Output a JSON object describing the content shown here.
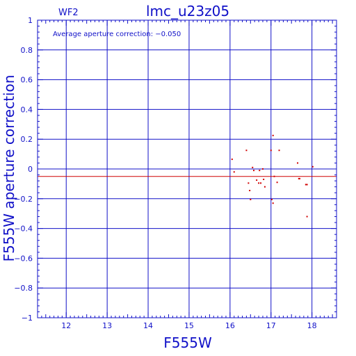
{
  "chart_data": {
    "type": "scatter",
    "title": "lmc_u23z05",
    "subtitle": "WF2",
    "xlabel": "F555W",
    "ylabel": "F555W aperture correction",
    "annotation": "Average aperture correction: −0.050",
    "xlim": [
      11.3,
      18.6
    ],
    "ylim": [
      -1,
      1
    ],
    "xticks": [
      12,
      13,
      14,
      15,
      16,
      17,
      18
    ],
    "yticks": [
      -1,
      -0.8,
      -0.6,
      -0.4,
      -0.2,
      0,
      0.2,
      0.4,
      0.6,
      0.8,
      1
    ],
    "xtick_labels": [
      "12",
      "13",
      "14",
      "15",
      "16",
      "17",
      "18"
    ],
    "ytick_labels": [
      "−1",
      "−0.8",
      "−0.6",
      "−0.4",
      "−0.2",
      "0",
      "0.2",
      "0.4",
      "0.6",
      "0.8",
      "1"
    ],
    "grid": true,
    "reference_lines": [
      {
        "y": 0,
        "color": "#1010c8"
      },
      {
        "y": -0.05,
        "color": "#d00000"
      }
    ],
    "series": [
      {
        "color": "#d00000",
        "points": [
          [
            16.05,
            0.065
          ],
          [
            16.1,
            -0.02
          ],
          [
            16.4,
            0.125
          ],
          [
            16.45,
            -0.095
          ],
          [
            16.48,
            -0.145
          ],
          [
            16.5,
            -0.205
          ],
          [
            16.55,
            0.01
          ],
          [
            16.58,
            -0.01
          ],
          [
            16.65,
            -0.075
          ],
          [
            16.7,
            -0.095
          ],
          [
            16.72,
            -0.01
          ],
          [
            16.75,
            -0.095
          ],
          [
            16.8,
            0.0
          ],
          [
            16.82,
            -0.07
          ],
          [
            16.85,
            -0.12
          ],
          [
            17.0,
            0.125
          ],
          [
            17.02,
            -0.205
          ],
          [
            17.05,
            0.225
          ],
          [
            17.05,
            -0.23
          ],
          [
            17.08,
            -0.05
          ],
          [
            17.15,
            -0.09
          ],
          [
            17.2,
            0.125
          ],
          [
            17.65,
            0.04
          ],
          [
            17.68,
            -0.065
          ],
          [
            17.7,
            -0.065
          ],
          [
            17.85,
            -0.105
          ],
          [
            17.88,
            -0.105
          ],
          [
            17.88,
            -0.32
          ],
          [
            18.02,
            0.015
          ]
        ]
      }
    ]
  }
}
